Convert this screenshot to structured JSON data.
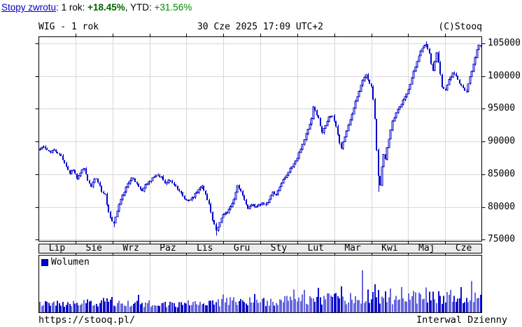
{
  "topbar": {
    "link": "Stopy zwrotu",
    "after_link": ": ",
    "label_1y": "1 rok: ",
    "value_1y": "+18.45%",
    "separator": ", ",
    "label_ytd": "YTD: ",
    "value_ytd": "+31.56%"
  },
  "header": {
    "left": "WIG - 1 rok",
    "center": "30 Cze 2025 17:09 UTC+2",
    "right": "(C)Stooq"
  },
  "footer": {
    "url": "https://stooq.pl/",
    "interval_label": "Interwal Dzienny"
  },
  "colors": {
    "candle": "#0000cc",
    "candle_hollow_fill": "#ffffff",
    "volume_dark": "#1111cc",
    "volume_light": "#6666dd",
    "grid": "#d8d8d8",
    "band_bg": "#ececec",
    "border": "#000000",
    "link_blue": "#0000cc",
    "green_bold": "#006600",
    "green": "#008800"
  },
  "chart_data": {
    "type": "candlestick+volume",
    "title": "WIG - 1 rok",
    "timestamp": "30 Cze 2025 17:09 UTC+2",
    "interval": "Dzienny",
    "x_months": [
      "Lip",
      "Sie",
      "Wrz",
      "Paz",
      "Lis",
      "Gru",
      "Sty",
      "Lut",
      "Mar",
      "Kwi",
      "Maj",
      "Cze"
    ],
    "y_ticks": [
      105000,
      100000,
      95000,
      90000,
      85000,
      80000,
      75000
    ],
    "ylim": [
      74700,
      106100
    ],
    "grid": true,
    "days": 251,
    "last_close": 104700,
    "close_anchors": [
      [
        0,
        88800
      ],
      [
        2,
        89300
      ],
      [
        5,
        88400
      ],
      [
        8,
        88700
      ],
      [
        11,
        88100
      ],
      [
        13,
        87300
      ],
      [
        15,
        86200
      ],
      [
        17,
        85100
      ],
      [
        19,
        85800
      ],
      [
        21,
        84300
      ],
      [
        23,
        85300
      ],
      [
        25,
        85900
      ],
      [
        27,
        84100
      ],
      [
        29,
        83000
      ],
      [
        31,
        84500
      ],
      [
        33,
        83900
      ],
      [
        35,
        82300
      ],
      [
        37,
        82000
      ],
      [
        38,
        80300
      ],
      [
        40,
        78300
      ],
      [
        42,
        77600
      ],
      [
        44,
        79500
      ],
      [
        46,
        81200
      ],
      [
        49,
        83000
      ],
      [
        52,
        84600
      ],
      [
        54,
        83900
      ],
      [
        56,
        83000
      ],
      [
        58,
        82300
      ],
      [
        60,
        83300
      ],
      [
        63,
        84100
      ],
      [
        66,
        84900
      ],
      [
        69,
        84500
      ],
      [
        71,
        83700
      ],
      [
        74,
        84100
      ],
      [
        77,
        83100
      ],
      [
        79,
        82400
      ],
      [
        81,
        81700
      ],
      [
        83,
        81000
      ],
      [
        85,
        80900
      ],
      [
        88,
        81900
      ],
      [
        90,
        82700
      ],
      [
        92,
        83200
      ],
      [
        94,
        82000
      ],
      [
        96,
        80300
      ],
      [
        98,
        77900
      ],
      [
        100,
        76500
      ],
      [
        102,
        77600
      ],
      [
        104,
        78800
      ],
      [
        106,
        79100
      ],
      [
        108,
        80000
      ],
      [
        110,
        81300
      ],
      [
        112,
        83200
      ],
      [
        114,
        82300
      ],
      [
        116,
        81000
      ],
      [
        118,
        79800
      ],
      [
        120,
        80500
      ],
      [
        122,
        80000
      ],
      [
        124,
        80300
      ],
      [
        126,
        80700
      ],
      [
        128,
        80400
      ],
      [
        130,
        81300
      ],
      [
        132,
        82200
      ],
      [
        134,
        81900
      ],
      [
        136,
        83000
      ],
      [
        138,
        84200
      ],
      [
        140,
        84900
      ],
      [
        142,
        85900
      ],
      [
        144,
        86600
      ],
      [
        146,
        87600
      ],
      [
        148,
        88900
      ],
      [
        150,
        90400
      ],
      [
        152,
        91800
      ],
      [
        154,
        93400
      ],
      [
        155,
        95300
      ],
      [
        156,
        94700
      ],
      [
        158,
        93600
      ],
      [
        160,
        91400
      ],
      [
        162,
        92400
      ],
      [
        164,
        93600
      ],
      [
        166,
        93900
      ],
      [
        168,
        92300
      ],
      [
        170,
        89600
      ],
      [
        171,
        89100
      ],
      [
        173,
        90800
      ],
      [
        175,
        92600
      ],
      [
        177,
        94300
      ],
      [
        179,
        96200
      ],
      [
        181,
        97800
      ],
      [
        183,
        99300
      ],
      [
        185,
        100200
      ],
      [
        186,
        99600
      ],
      [
        188,
        98300
      ],
      [
        189,
        96300
      ],
      [
        190,
        93500
      ],
      [
        191,
        88600
      ],
      [
        192,
        84900
      ],
      [
        193,
        83300
      ],
      [
        194,
        86200
      ],
      [
        195,
        88100
      ],
      [
        196,
        87300
      ],
      [
        197,
        89000
      ],
      [
        198,
        90500
      ],
      [
        199,
        91900
      ],
      [
        200,
        93000
      ],
      [
        202,
        94500
      ],
      [
        204,
        95300
      ],
      [
        206,
        96200
      ],
      [
        209,
        97900
      ],
      [
        211,
        99800
      ],
      [
        213,
        101500
      ],
      [
        215,
        103200
      ],
      [
        217,
        104300
      ],
      [
        219,
        104800
      ],
      [
        221,
        103500
      ],
      [
        222,
        101900
      ],
      [
        223,
        100900
      ],
      [
        224,
        102300
      ],
      [
        225,
        103600
      ],
      [
        226,
        102000
      ],
      [
        227,
        100200
      ],
      [
        228,
        98400
      ],
      [
        230,
        97900
      ],
      [
        232,
        99400
      ],
      [
        234,
        100600
      ],
      [
        236,
        99900
      ],
      [
        238,
        98900
      ],
      [
        240,
        98100
      ],
      [
        242,
        97700
      ],
      [
        243,
        98800
      ],
      [
        244,
        99900
      ],
      [
        245,
        100800
      ],
      [
        246,
        101900
      ],
      [
        247,
        103000
      ],
      [
        248,
        104000
      ],
      [
        249,
        104600
      ],
      [
        250,
        104700
      ]
    ],
    "wick_events": [
      {
        "day": 42,
        "low": 76900
      },
      {
        "day": 100,
        "low": 75600
      },
      {
        "day": 192,
        "low": 82300
      },
      {
        "day": 219,
        "high": 105300
      }
    ],
    "volume": {
      "legend": "Wolumen",
      "base_anchors": [
        [
          0,
          0.15
        ],
        [
          20,
          0.14
        ],
        [
          40,
          0.19
        ],
        [
          55,
          0.15
        ],
        [
          80,
          0.14
        ],
        [
          100,
          0.17
        ],
        [
          115,
          0.19
        ],
        [
          130,
          0.18
        ],
        [
          145,
          0.21
        ],
        [
          160,
          0.23
        ],
        [
          175,
          0.25
        ],
        [
          185,
          0.26
        ],
        [
          200,
          0.25
        ],
        [
          215,
          0.27
        ],
        [
          230,
          0.25
        ],
        [
          250,
          0.27
        ]
      ],
      "spikes": {
        "41": 0.14,
        "56": 0.1,
        "104": 0.08,
        "122": 0.13,
        "144": 0.27,
        "150": 0.12,
        "158": 0.14,
        "166": 0.1,
        "171": 0.16,
        "176": 0.1,
        "183": 0.52,
        "186": 0.18,
        "190": 0.15,
        "192": 0.22,
        "199": 0.14,
        "205": 0.1,
        "212": 0.12,
        "219": 0.28,
        "226": 0.13,
        "233": 0.1,
        "239": 0.12,
        "245": 0.17
      }
    }
  }
}
